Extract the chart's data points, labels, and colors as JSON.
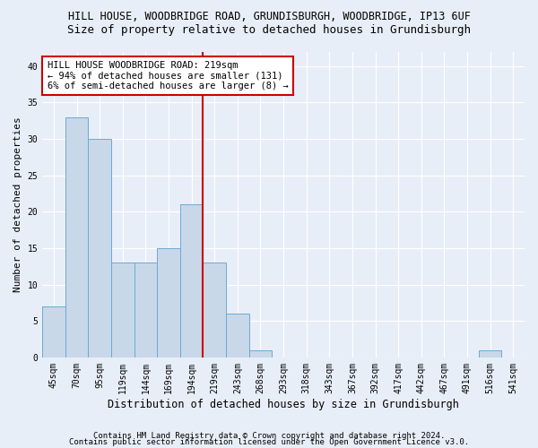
{
  "title1": "HILL HOUSE, WOODBRIDGE ROAD, GRUNDISBURGH, WOODBRIDGE, IP13 6UF",
  "title2": "Size of property relative to detached houses in Grundisburgh",
  "xlabel": "Distribution of detached houses by size in Grundisburgh",
  "ylabel": "Number of detached properties",
  "categories": [
    "45sqm",
    "70sqm",
    "95sqm",
    "119sqm",
    "144sqm",
    "169sqm",
    "194sqm",
    "219sqm",
    "243sqm",
    "268sqm",
    "293sqm",
    "318sqm",
    "343sqm",
    "367sqm",
    "392sqm",
    "417sqm",
    "442sqm",
    "467sqm",
    "491sqm",
    "516sqm",
    "541sqm"
  ],
  "values": [
    7,
    33,
    30,
    13,
    13,
    15,
    21,
    13,
    6,
    1,
    0,
    0,
    0,
    0,
    0,
    0,
    0,
    0,
    0,
    1,
    0
  ],
  "bar_color": "#c8d8e8",
  "bar_edge_color": "#6aaad4",
  "vline_x_index": 7,
  "annotation_line1": "HILL HOUSE WOODBRIDGE ROAD: 219sqm",
  "annotation_line2": "← 94% of detached houses are smaller (131)",
  "annotation_line3": "6% of semi-detached houses are larger (8) →",
  "annotation_box_facecolor": "#ffffff",
  "annotation_box_edgecolor": "#cc0000",
  "vline_color": "#cc0000",
  "ylim": [
    0,
    42
  ],
  "yticks": [
    0,
    5,
    10,
    15,
    20,
    25,
    30,
    35,
    40
  ],
  "bg_color": "#e8eef8",
  "plot_bg_color": "#e8eef8",
  "title1_fontsize": 8.5,
  "title2_fontsize": 9.0,
  "tick_fontsize": 7.0,
  "xlabel_fontsize": 8.5,
  "ylabel_fontsize": 8.0,
  "annot_fontsize": 7.5,
  "footer_fontsize": 6.5,
  "footer1": "Contains HM Land Registry data © Crown copyright and database right 2024.",
  "footer2": "Contains public sector information licensed under the Open Government Licence v3.0."
}
